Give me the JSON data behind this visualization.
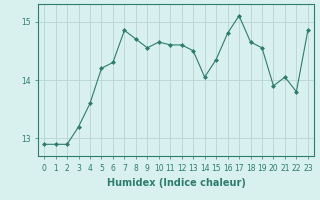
{
  "xlabel": "Humidex (Indice chaleur)",
  "x_values": [
    0,
    1,
    2,
    3,
    4,
    5,
    6,
    7,
    8,
    9,
    10,
    11,
    12,
    13,
    14,
    15,
    16,
    17,
    18,
    19,
    20,
    21,
    22,
    23
  ],
  "y_values": [
    12.9,
    12.9,
    12.9,
    13.2,
    13.6,
    14.2,
    14.3,
    14.85,
    14.7,
    14.55,
    14.65,
    14.6,
    14.6,
    14.5,
    14.05,
    14.35,
    14.8,
    15.1,
    14.65,
    14.55,
    13.9,
    14.05,
    13.8,
    14.85
  ],
  "line_color": "#2d7d6e",
  "marker": "D",
  "marker_size": 2.0,
  "bg_color": "#d8f0ee",
  "grid_color": "#b8d4d4",
  "ylim": [
    12.7,
    15.3
  ],
  "yticks": [
    13,
    14,
    15
  ],
  "xlim": [
    -0.5,
    23.5
  ],
  "tick_fontsize": 5.5,
  "label_fontsize": 7,
  "label_fontweight": "bold"
}
